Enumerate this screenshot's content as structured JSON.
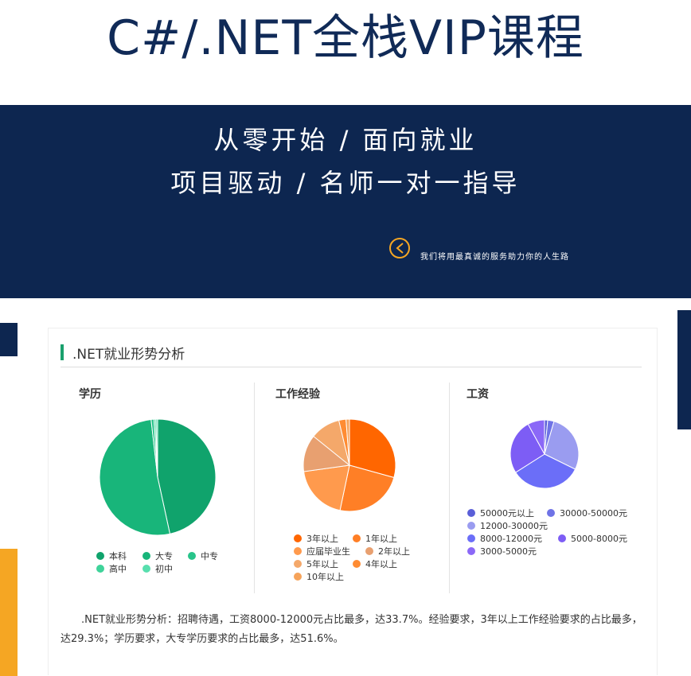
{
  "header": {
    "title": "C#/.NET全栈VIP课程"
  },
  "banner": {
    "line1": "从零开始 / 面向就业",
    "line2": "项目驱动 / 名师一对一指导",
    "slogan": "我们将用最真诚的服务助力你的人生路"
  },
  "section": {
    "title": ".NET就业形势分析",
    "summary": ".NET就业形势分析：招聘待遇，工资8000-12000元占比最多，达33.7%。经验要求，3年以上工作经验要求的占比最多，达29.3%；学历要求，大专学历要求的占比最多，达51.6%。"
  },
  "chart_data": [
    {
      "type": "pie",
      "title": "学历",
      "categories": [
        "本科",
        "大专",
        "中专",
        "高中",
        "初中"
      ],
      "values": [
        46.6,
        51.6,
        0.8,
        0.5,
        0.5
      ],
      "colors": [
        "#10a36c",
        "#18b57a",
        "#28c48a",
        "#3fd39a",
        "#58dfae"
      ],
      "legend": "bottom"
    },
    {
      "type": "pie",
      "title": "工作经验",
      "categories": [
        "3年以上",
        "1年以上",
        "应届毕业生",
        "2年以上",
        "5年以上",
        "4年以上",
        "10年以上"
      ],
      "values": [
        29.3,
        24.0,
        19.5,
        13.0,
        10.5,
        2.5,
        1.2
      ],
      "colors": [
        "#ff6600",
        "#ff7f26",
        "#ff9a4d",
        "#e8a070",
        "#f4a86a",
        "#ff8c33",
        "#f6a35a"
      ],
      "legend": "bottom"
    },
    {
      "type": "pie",
      "title": "工资",
      "categories": [
        "50000元以上",
        "30000-50000元",
        "12000-30000元",
        "8000-12000元",
        "5000-8000元",
        "3000-5000元"
      ],
      "values": [
        1.5,
        3.0,
        27.8,
        33.7,
        26.0,
        8.0
      ],
      "colors": [
        "#5a5fd8",
        "#6f73e6",
        "#9a9cf0",
        "#6b6ef8",
        "#7d5df5",
        "#8b68f7"
      ],
      "legend": "bottom"
    }
  ]
}
